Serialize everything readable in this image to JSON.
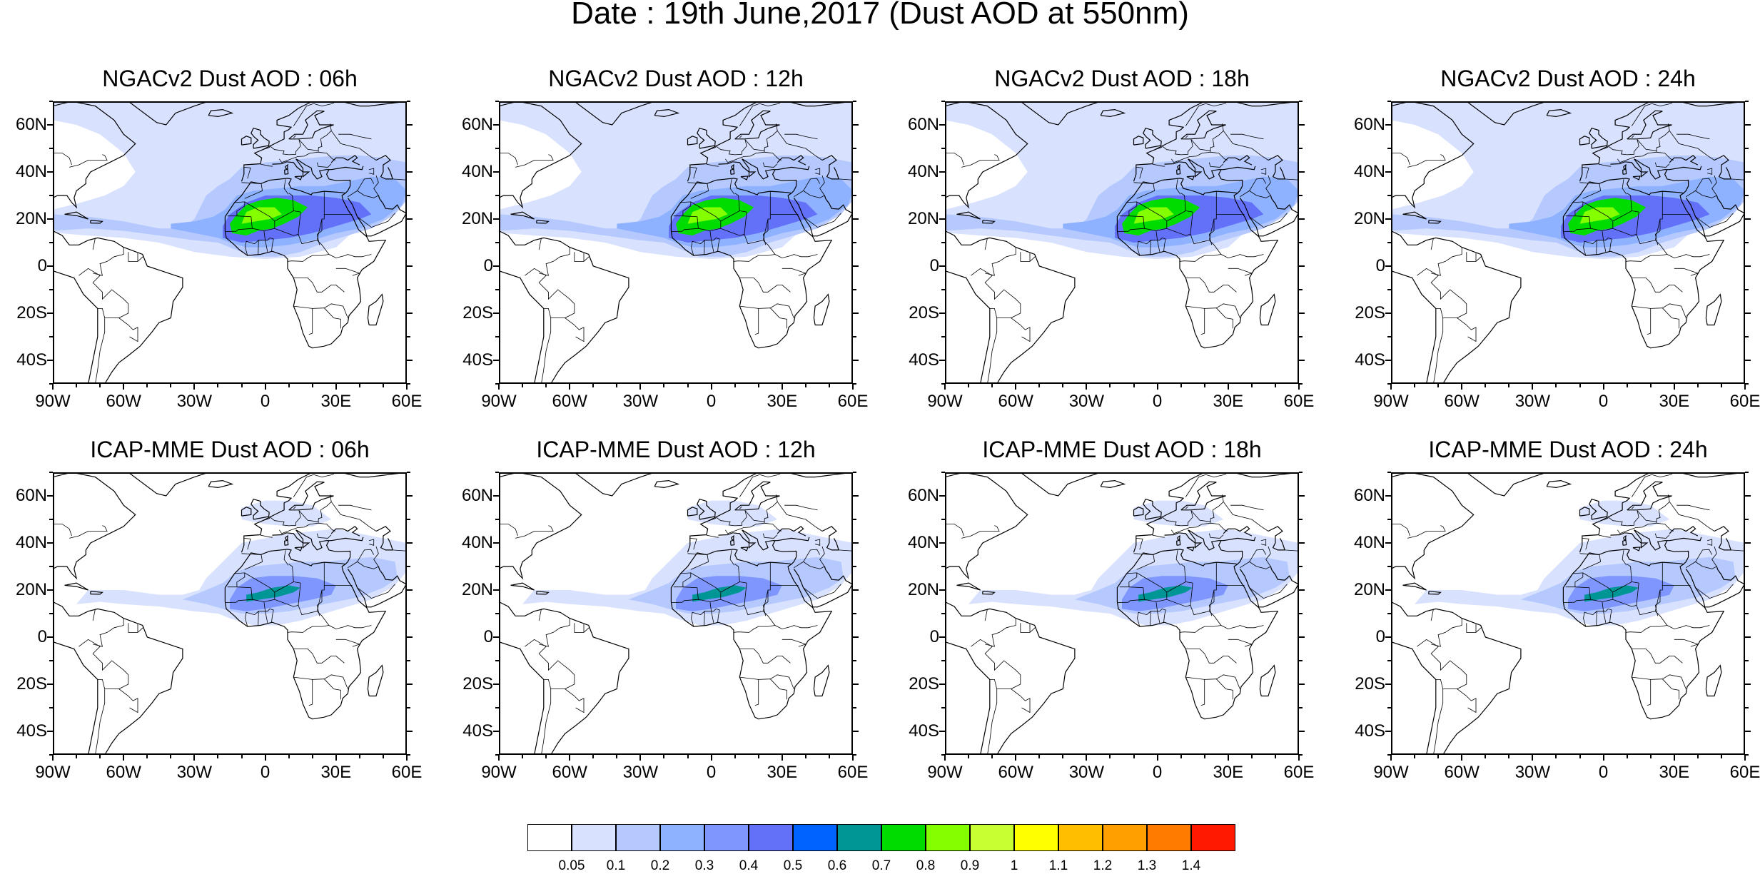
{
  "title": "Date : 19th June,2017 (Dust AOD at 550nm)",
  "lat_labels": [
    "60N",
    "40N",
    "20N",
    "0",
    "20S",
    "40S"
  ],
  "lon_labels": [
    "90W",
    "60W",
    "30W",
    "0",
    "30E",
    "60E"
  ],
  "panels": [
    {
      "title": "NGACv2 Dust AOD : 06h",
      "model": "NGACv2",
      "hour": "06h"
    },
    {
      "title": "NGACv2 Dust AOD : 12h",
      "model": "NGACv2",
      "hour": "12h"
    },
    {
      "title": "NGACv2 Dust AOD : 18h",
      "model": "NGACv2",
      "hour": "18h"
    },
    {
      "title": "NGACv2 Dust AOD : 24h",
      "model": "NGACv2",
      "hour": "24h"
    },
    {
      "title": "ICAP-MME Dust AOD : 06h",
      "model": "ICAP-MME",
      "hour": "06h"
    },
    {
      "title": "ICAP-MME Dust AOD : 12h",
      "model": "ICAP-MME",
      "hour": "12h"
    },
    {
      "title": "ICAP-MME Dust AOD : 18h",
      "model": "ICAP-MME",
      "hour": "18h"
    },
    {
      "title": "ICAP-MME Dust AOD : 24h",
      "model": "ICAP-MME",
      "hour": "24h"
    }
  ],
  "colorbar": {
    "labels": [
      "0.05",
      "0.1",
      "0.2",
      "0.3",
      "0.4",
      "0.5",
      "0.6",
      "0.7",
      "0.8",
      "0.9",
      "1",
      "1.1",
      "1.2",
      "1.3",
      "1.4"
    ],
    "colors": [
      "#ffffff",
      "#d8e1fe",
      "#b5c9ff",
      "#8eb2ff",
      "#7f96ff",
      "#6370f8",
      "#0063ff",
      "#009695",
      "#00dc00",
      "#83ff00",
      "#c8ff32",
      "#ffff00",
      "#ffbf00",
      "#ffa000",
      "#ff7c00",
      "#ff1900"
    ]
  }
}
